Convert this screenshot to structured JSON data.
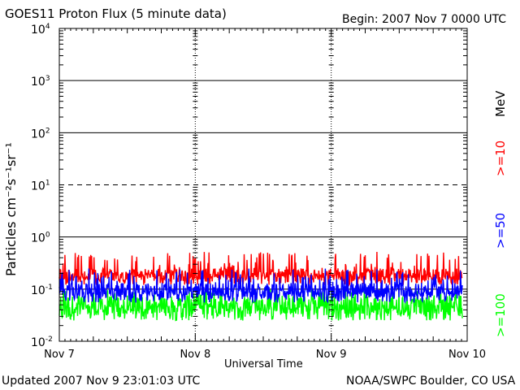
{
  "header": {
    "title": "GOES11 Proton Flux (5 minute data)",
    "begin": "Begin: 2007 Nov 7 0000 UTC"
  },
  "footer": {
    "updated": "Updated 2007 Nov  9 23:01:03 UTC",
    "credit": "NOAA/SWPC Boulder, CO USA"
  },
  "chart_data": {
    "type": "line",
    "title": "GOES11 Proton Flux (5 minute data)",
    "xlabel": "Universal Time",
    "ylabel": "Particles cm⁻²s⁻¹sr⁻¹",
    "yscale": "log",
    "ylim": [
      0.01,
      10000
    ],
    "y_ticks": [
      {
        "value": 0.01,
        "label_base": "10",
        "label_exp": "-2"
      },
      {
        "value": 0.1,
        "label_base": "10",
        "label_exp": "-1"
      },
      {
        "value": 1,
        "label_base": "10",
        "label_exp": "0"
      },
      {
        "value": 10,
        "label_base": "10",
        "label_exp": "1"
      },
      {
        "value": 100,
        "label_base": "10",
        "label_exp": "2"
      },
      {
        "value": 1000,
        "label_base": "10",
        "label_exp": "3"
      },
      {
        "value": 10000,
        "label_base": "10",
        "label_exp": "4"
      }
    ],
    "x_ticks": [
      "Nov 7",
      "Nov 8",
      "Nov 9",
      "Nov 10"
    ],
    "xlim": [
      "2007-11-07 00:00",
      "2007-11-10 00:00"
    ],
    "units_label": "MeV",
    "colors": {
      "axis": "#000000",
      "s10": "#ff0000",
      "s50": "#0000ff",
      "s100": "#00ff00"
    },
    "series": [
      {
        "name": ">=10",
        "color": "#ff0000",
        "level": 0.19,
        "min": 0.12,
        "max": 0.52
      },
      {
        "name": ">=50",
        "color": "#0000ff",
        "level": 0.095,
        "min": 0.055,
        "max": 0.25
      },
      {
        "name": ">=100",
        "color": "#00ff00",
        "level": 0.05,
        "min": 0.025,
        "max": 0.1
      }
    ]
  }
}
